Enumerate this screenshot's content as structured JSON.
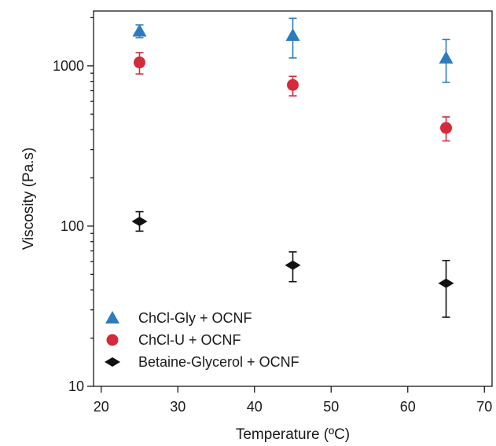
{
  "chart_data": {
    "type": "scatter",
    "xlabel": "Temperature (ºC)",
    "ylabel": "Viscosity (Pa.s)",
    "x_scale": "linear",
    "y_scale": "log",
    "xlim": [
      19,
      71
    ],
    "ylim": [
      10,
      2200
    ],
    "x_ticks": [
      20,
      30,
      40,
      50,
      60,
      70
    ],
    "y_ticks": [
      10,
      100,
      1000
    ],
    "legend_position": "bottom-left",
    "grid": false,
    "series": [
      {
        "name": "ChCl-Gly + OCNF",
        "marker": "triangle",
        "color": "#2b7bbf",
        "points": [
          {
            "x": 25,
            "y": 1650,
            "err_low": 1500,
            "err_high": 1800
          },
          {
            "x": 45,
            "y": 1550,
            "err_low": 1120,
            "err_high": 1980
          },
          {
            "x": 65,
            "y": 1120,
            "err_low": 790,
            "err_high": 1460
          }
        ]
      },
      {
        "name": "ChCl-U + OCNF",
        "marker": "circle",
        "color": "#d42a3c",
        "points": [
          {
            "x": 25,
            "y": 1050,
            "err_low": 890,
            "err_high": 1210
          },
          {
            "x": 45,
            "y": 760,
            "err_low": 650,
            "err_high": 860
          },
          {
            "x": 65,
            "y": 410,
            "err_low": 340,
            "err_high": 480
          }
        ]
      },
      {
        "name": "Betaine-Glycerol + OCNF",
        "marker": "diamond",
        "color": "#111111",
        "points": [
          {
            "x": 25,
            "y": 107,
            "err_low": 93,
            "err_high": 123
          },
          {
            "x": 45,
            "y": 57,
            "err_low": 45,
            "err_high": 69
          },
          {
            "x": 65,
            "y": 44,
            "err_low": 27,
            "err_high": 61
          }
        ]
      }
    ]
  }
}
